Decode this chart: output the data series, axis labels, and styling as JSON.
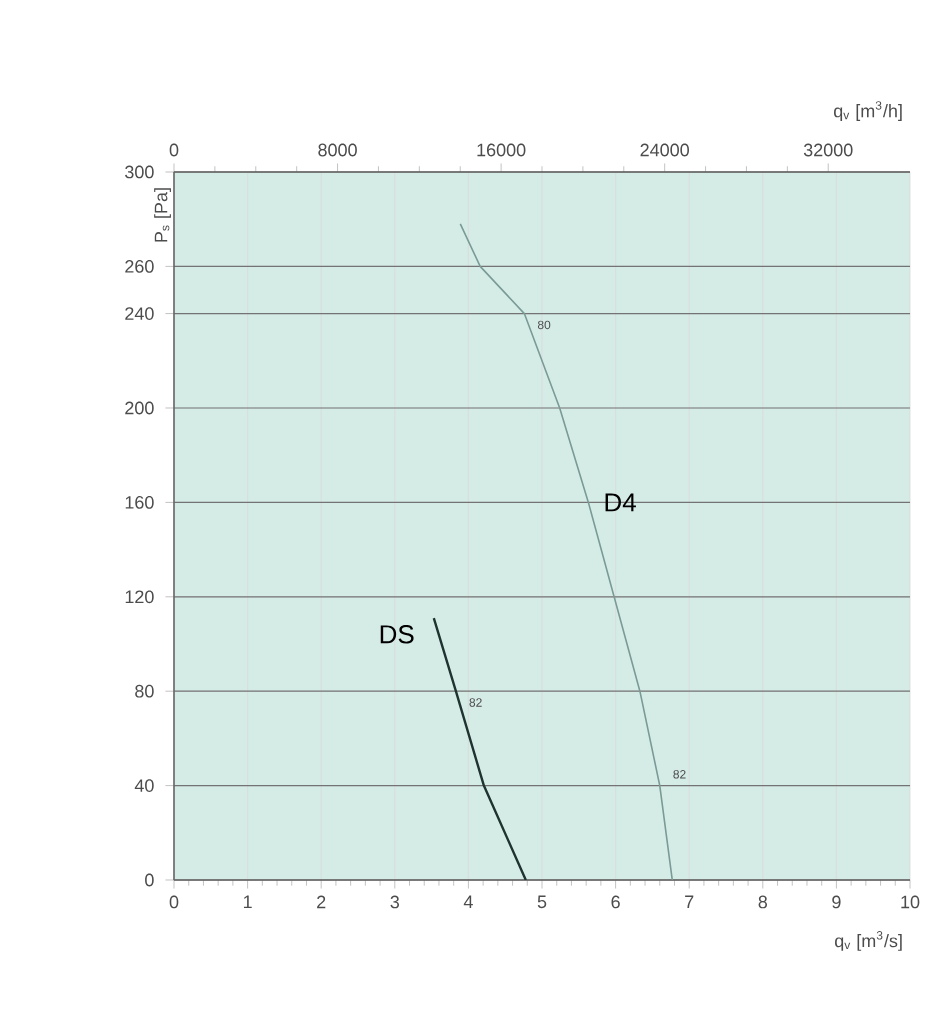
{
  "chart_data": {
    "type": "line",
    "xlabel": "q$_{v}$ [m$^{3}$/s]",
    "ylabel": "P$_{s}$ [Pa]",
    "x2label": "q$_{v}$ [m$^{3}$/h]",
    "xlim": [
      0,
      10
    ],
    "xticks": [
      0,
      1,
      2,
      3,
      4,
      5,
      6,
      7,
      8,
      9,
      10
    ],
    "x2lim": [
      0,
      36000
    ],
    "x2ticks": [
      0,
      8000,
      16000,
      24000,
      32000
    ],
    "ylim": [
      0,
      300
    ],
    "yticks": [
      0,
      40,
      80,
      120,
      160,
      200,
      240,
      260,
      300
    ],
    "grid": true,
    "marker": "none",
    "line_style": "solid",
    "series": [
      {
        "name": "DS",
        "color": "#1f3330",
        "x": [
          3.53,
          3.83,
          4.21,
          4.78
        ],
        "values": [
          111,
          80,
          40,
          0
        ]
      },
      {
        "name": "D4",
        "color": "#7a9a95",
        "x": [
          3.89,
          4.16,
          4.76,
          5.24,
          5.63,
          5.98,
          6.33,
          6.6,
          6.77
        ],
        "values": [
          278,
          260,
          240,
          200,
          160,
          120,
          80,
          40,
          0
        ]
      }
    ],
    "annotations": [
      "80",
      "82",
      "82"
    ]
  }
}
